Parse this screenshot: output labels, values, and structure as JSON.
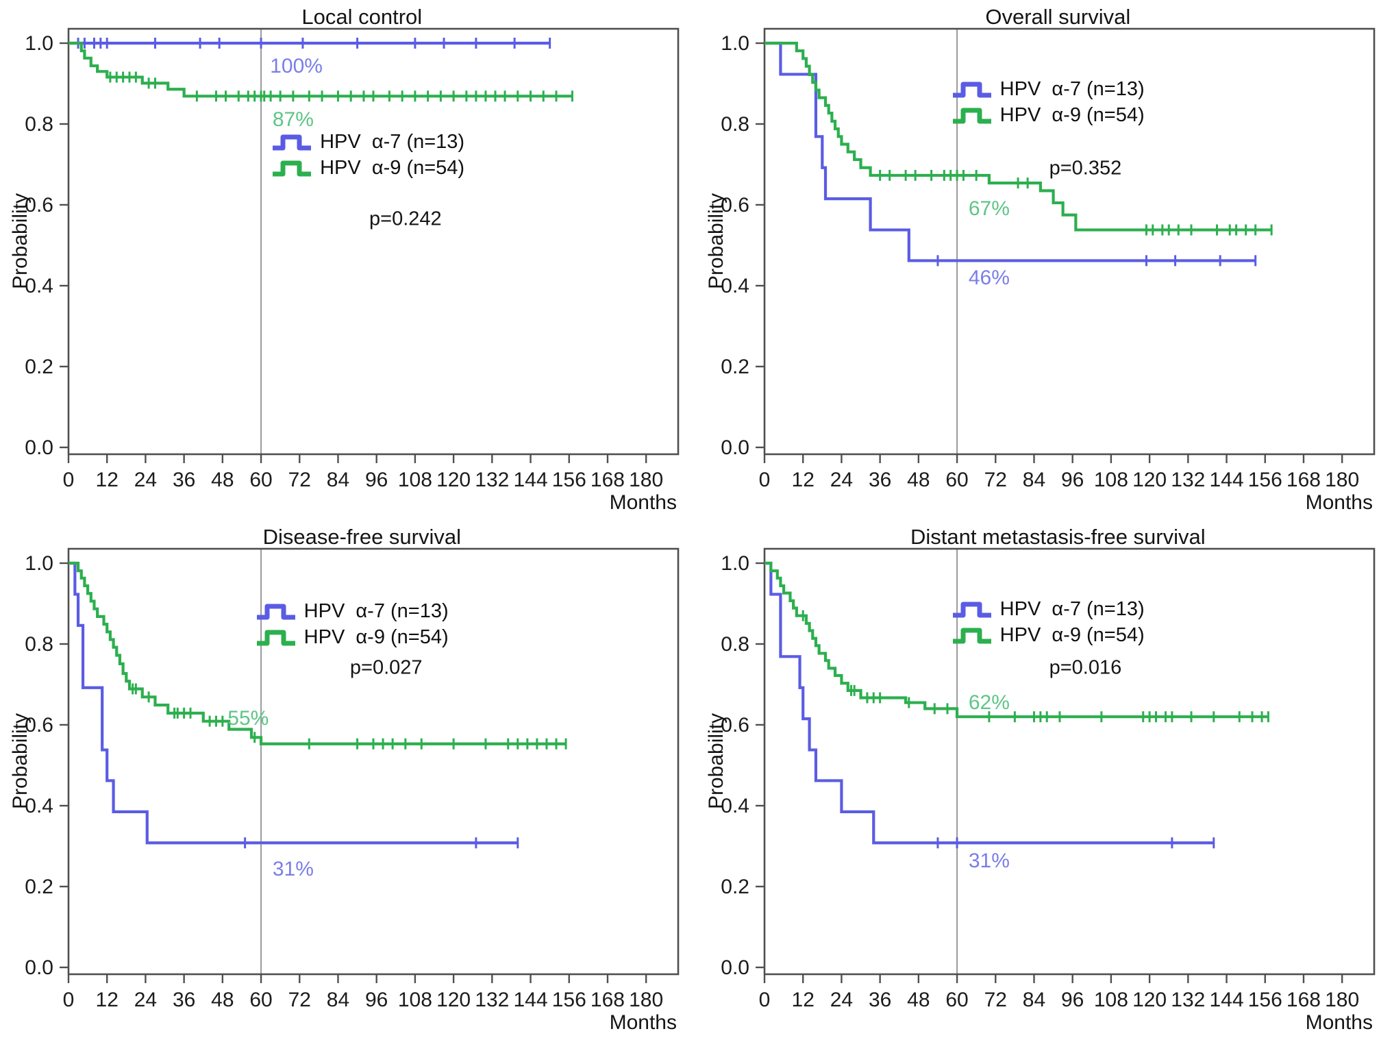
{
  "figure": {
    "x_unit": "Months",
    "y_label": "Probability"
  },
  "colors": {
    "alpha7_line": "#5a5ce4",
    "alpha9_line": "#2caf4e",
    "alpha7_label": "#7b7de9",
    "alpha9_label": "#5ec587",
    "axis": "#4f4f4f",
    "tick_text": "#1c1c1c",
    "ref_line": "#9a9a9a",
    "background": "#ffffff"
  },
  "legend": {
    "items": [
      {
        "label": "HPV  α-7 (n=13)",
        "color_key": "alpha7_line"
      },
      {
        "label": "HPV  α-9 (n=54)",
        "color_key": "alpha9_line"
      }
    ]
  },
  "axis": {
    "x_ticks": [
      0,
      12,
      24,
      36,
      48,
      60,
      72,
      84,
      96,
      108,
      120,
      132,
      144,
      156,
      168,
      180
    ],
    "y_ticks": [
      "0.0",
      "0.2",
      "0.4",
      "0.6",
      "0.8",
      "1.0"
    ],
    "x_max_months": 190,
    "y_range": [
      0.0,
      1.0
    ],
    "reference_line_month": 60,
    "grid": "off",
    "legend_position": "inside-right"
  },
  "chart_data": [
    {
      "type": "line",
      "title": "Local control",
      "p_value_label": "p=0.242",
      "series": [
        {
          "name": "HPV α-7 (n=13)",
          "color_key": "alpha7_line",
          "steps": [
            [
              0,
              1.0
            ]
          ],
          "end": 150,
          "censors": [
            3,
            5,
            8,
            10,
            12,
            27,
            41,
            47,
            60,
            73,
            90,
            108,
            117,
            127,
            139,
            150
          ]
        },
        {
          "name": "HPV α-9 (n=54)",
          "color_key": "alpha9_line",
          "steps": [
            [
              0,
              1.0
            ],
            [
              4,
              0.981
            ],
            [
              5,
              0.963
            ],
            [
              7,
              0.944
            ],
            [
              9,
              0.93
            ],
            [
              12,
              0.916
            ],
            [
              23,
              0.901
            ],
            [
              31,
              0.886
            ],
            [
              36,
              0.869
            ]
          ],
          "end": 157,
          "censors": [
            13,
            15,
            17,
            19,
            21,
            25,
            27,
            40,
            46,
            49,
            53,
            56,
            58,
            60,
            61,
            63,
            66,
            70,
            75,
            79,
            84,
            88,
            92,
            95,
            100,
            104,
            108,
            112,
            116,
            120,
            124,
            127,
            130,
            133,
            136,
            140,
            144,
            148,
            152,
            157
          ]
        }
      ],
      "annotations": {
        "alpha7_pct": {
          "text": "100%",
          "m": 71,
          "p": 0.942
        },
        "alpha9_pct": {
          "text": "87%",
          "m": 70,
          "p": 0.81
        }
      },
      "layout": {
        "legend": {
          "m": 63,
          "p_top": 0.755
        },
        "p_label": {
          "m": 105,
          "p": 0.565
        }
      }
    },
    {
      "type": "line",
      "title": "Overall survival",
      "p_value_label": "p=0.352",
      "series": [
        {
          "name": "HPV α-7 (n=13)",
          "color_key": "alpha7_line",
          "steps": [
            [
              0,
              1.0
            ],
            [
              5,
              0.923
            ],
            [
              16,
              0.769
            ],
            [
              18,
              0.692
            ],
            [
              19,
              0.615
            ],
            [
              33,
              0.538
            ],
            [
              45,
              0.462
            ]
          ],
          "end": 153,
          "censors": [
            54,
            119,
            128,
            142,
            153
          ]
        },
        {
          "name": "HPV α-9 (n=54)",
          "color_key": "alpha9_line",
          "steps": [
            [
              0,
              1.0
            ],
            [
              10,
              0.981
            ],
            [
              12,
              0.962
            ],
            [
              13,
              0.943
            ],
            [
              14,
              0.922
            ],
            [
              15,
              0.903
            ],
            [
              16,
              0.884
            ],
            [
              17,
              0.865
            ],
            [
              19,
              0.846
            ],
            [
              20,
              0.827
            ],
            [
              21,
              0.807
            ],
            [
              22,
              0.788
            ],
            [
              23,
              0.769
            ],
            [
              24,
              0.75
            ],
            [
              26,
              0.731
            ],
            [
              28,
              0.712
            ],
            [
              30,
              0.692
            ],
            [
              33,
              0.673
            ],
            [
              70,
              0.654
            ],
            [
              86,
              0.635
            ],
            [
              90,
              0.605
            ],
            [
              93,
              0.575
            ],
            [
              97,
              0.538
            ]
          ],
          "end": 158,
          "censors": [
            36,
            39,
            44,
            47,
            52,
            56,
            58,
            60,
            62,
            66,
            79,
            82,
            119,
            121,
            124,
            126,
            129,
            133,
            141,
            145,
            147,
            150,
            153,
            158
          ]
        }
      ],
      "annotations": {
        "alpha9_pct": {
          "text": "67%",
          "m": 70,
          "p": 0.59
        },
        "alpha7_pct": {
          "text": "46%",
          "m": 70,
          "p": 0.418
        }
      },
      "layout": {
        "legend": {
          "m": 58,
          "p_top": 0.885
        },
        "p_label": {
          "m": 100,
          "p": 0.69
        }
      }
    },
    {
      "type": "line",
      "title": "Disease-free survival",
      "p_value_label": "p=0.027",
      "series": [
        {
          "name": "HPV α-7 (n=13)",
          "color_key": "alpha7_line",
          "steps": [
            [
              0,
              1.0
            ],
            [
              2,
              0.923
            ],
            [
              3,
              0.846
            ],
            [
              4.5,
              0.692
            ],
            [
              10.5,
              0.538
            ],
            [
              12,
              0.462
            ],
            [
              14,
              0.385
            ],
            [
              24.5,
              0.308
            ]
          ],
          "end": 140,
          "censors": [
            55,
            127,
            140
          ]
        },
        {
          "name": "HPV α-9 (n=54)",
          "color_key": "alpha9_line",
          "steps": [
            [
              0,
              1.0
            ],
            [
              3,
              0.981
            ],
            [
              4,
              0.963
            ],
            [
              5,
              0.944
            ],
            [
              6,
              0.925
            ],
            [
              7,
              0.906
            ],
            [
              8,
              0.887
            ],
            [
              9,
              0.868
            ],
            [
              11,
              0.849
            ],
            [
              12,
              0.83
            ],
            [
              13,
              0.811
            ],
            [
              14,
              0.792
            ],
            [
              15,
              0.772
            ],
            [
              16,
              0.751
            ],
            [
              17,
              0.727
            ],
            [
              18,
              0.708
            ],
            [
              19,
              0.689
            ],
            [
              23,
              0.669
            ],
            [
              27,
              0.649
            ],
            [
              31,
              0.629
            ],
            [
              42,
              0.609
            ],
            [
              50,
              0.589
            ],
            [
              57,
              0.569
            ],
            [
              60,
              0.553
            ]
          ],
          "end": 155,
          "censors": [
            20,
            21,
            25,
            33,
            34,
            36,
            38,
            44,
            46,
            48,
            58,
            75,
            90,
            95,
            98,
            101,
            105,
            110,
            120,
            130,
            137,
            140,
            143,
            146,
            149,
            152,
            155
          ]
        }
      ],
      "annotations": {
        "alpha9_pct": {
          "text": "55%",
          "m": 56,
          "p": 0.615
        },
        "alpha7_pct": {
          "text": "31%",
          "m": 70,
          "p": 0.242
        }
      },
      "layout": {
        "legend": {
          "m": 58,
          "p_top": 0.88
        },
        "p_label": {
          "m": 99,
          "p": 0.74
        }
      }
    },
    {
      "type": "line",
      "title": "Distant metastasis-free survival",
      "p_value_label": "p=0.016",
      "series": [
        {
          "name": "HPV α-7 (n=13)",
          "color_key": "alpha7_line",
          "steps": [
            [
              0,
              1.0
            ],
            [
              2,
              0.923
            ],
            [
              5,
              0.769
            ],
            [
              11,
              0.692
            ],
            [
              12,
              0.615
            ],
            [
              14,
              0.538
            ],
            [
              16,
              0.462
            ],
            [
              24,
              0.385
            ],
            [
              34,
              0.308
            ]
          ],
          "end": 140,
          "censors": [
            54,
            60,
            127,
            140
          ]
        },
        {
          "name": "HPV α-9 (n=54)",
          "color_key": "alpha9_line",
          "steps": [
            [
              0,
              1.0
            ],
            [
              2,
              0.981
            ],
            [
              4,
              0.963
            ],
            [
              5,
              0.944
            ],
            [
              6,
              0.926
            ],
            [
              8,
              0.907
            ],
            [
              9,
              0.889
            ],
            [
              10,
              0.87
            ],
            [
              13,
              0.851
            ],
            [
              14,
              0.833
            ],
            [
              15,
              0.814
            ],
            [
              16,
              0.796
            ],
            [
              17,
              0.777
            ],
            [
              19,
              0.759
            ],
            [
              20,
              0.74
            ],
            [
              22,
              0.722
            ],
            [
              24,
              0.703
            ],
            [
              26,
              0.685
            ],
            [
              30,
              0.667
            ],
            [
              44,
              0.655
            ],
            [
              50,
              0.64
            ],
            [
              60,
              0.62
            ]
          ],
          "end": 157,
          "censors": [
            12,
            27,
            28,
            32,
            34,
            36,
            45,
            53,
            57,
            70,
            78,
            84,
            86,
            88,
            92,
            105,
            118,
            120,
            122,
            125,
            127,
            133,
            140,
            148,
            152,
            155,
            157
          ]
        }
      ],
      "annotations": {
        "alpha9_pct": {
          "text": "62%",
          "m": 70,
          "p": 0.655
        },
        "alpha7_pct": {
          "text": "31%",
          "m": 70,
          "p": 0.262
        }
      },
      "layout": {
        "legend": {
          "m": 58,
          "p_top": 0.885
        },
        "p_label": {
          "m": 100,
          "p": 0.74
        }
      }
    }
  ]
}
